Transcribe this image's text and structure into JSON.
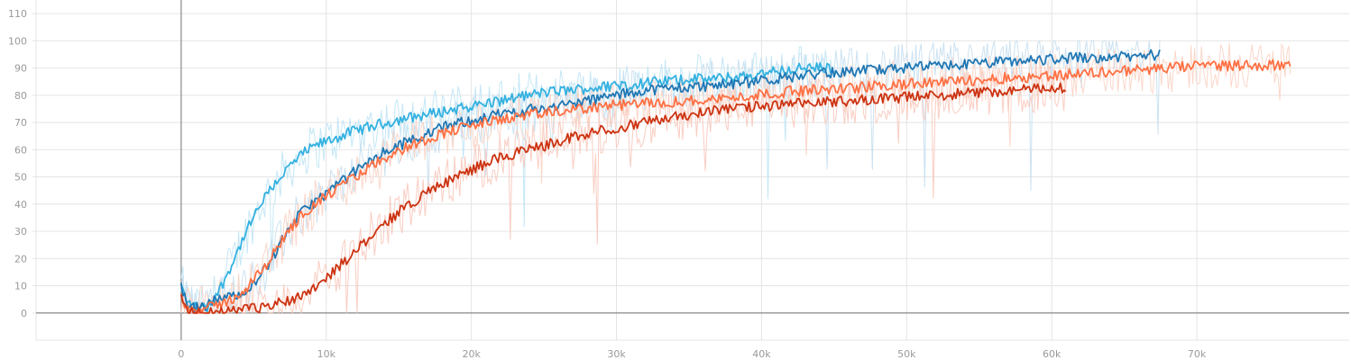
{
  "chart_data": {
    "type": "line",
    "title": "",
    "xlabel": "",
    "ylabel": "",
    "xlim": [
      -10000,
      80500
    ],
    "ylim": [
      -10,
      115
    ],
    "grid": true,
    "legend": "none",
    "x_ticks": [
      {
        "value": 0,
        "label": "0"
      },
      {
        "value": 10000,
        "label": "10k"
      },
      {
        "value": 20000,
        "label": "20k"
      },
      {
        "value": 30000,
        "label": "30k"
      },
      {
        "value": 40000,
        "label": "40k"
      },
      {
        "value": 50000,
        "label": "50k"
      },
      {
        "value": 60000,
        "label": "60k"
      },
      {
        "value": 70000,
        "label": "70k"
      }
    ],
    "y_ticks": [
      {
        "value": 0,
        "label": "0"
      },
      {
        "value": 10,
        "label": "10"
      },
      {
        "value": 20,
        "label": "20"
      },
      {
        "value": 30,
        "label": "30"
      },
      {
        "value": 40,
        "label": "40"
      },
      {
        "value": 50,
        "label": "50"
      },
      {
        "value": 60,
        "label": "60"
      },
      {
        "value": 70,
        "label": "70"
      },
      {
        "value": 80,
        "label": "80"
      },
      {
        "value": 90,
        "label": "90"
      },
      {
        "value": 100,
        "label": "100"
      },
      {
        "value": 110,
        "label": "110"
      }
    ],
    "series": [
      {
        "color": "#33b1e0",
        "raw_color": "#bfe4f5",
        "x": [
          0,
          400,
          1000,
          1800,
          2600,
          3500,
          4500,
          5500,
          6500,
          7500,
          8500,
          9500,
          10500,
          12000,
          13500,
          15000,
          17000,
          19000,
          21000,
          23000,
          25000,
          27000,
          29000,
          31000,
          33000,
          35000,
          37000,
          39000,
          41000,
          43000,
          45000
        ],
        "y": [
          10,
          4,
          2,
          2,
          8,
          18,
          30,
          40,
          48,
          54,
          59,
          62,
          64,
          67,
          69,
          71,
          73,
          75,
          77,
          79,
          81,
          82,
          83,
          84,
          85,
          86,
          86,
          87,
          89,
          90,
          90
        ]
      },
      {
        "color": "#1f77b4",
        "raw_color": "#c6dff0",
        "x": [
          0,
          300,
          800,
          1500,
          2500,
          3500,
          4500,
          5500,
          6500,
          7500,
          8500,
          10000,
          12000,
          14000,
          16000,
          18000,
          20000,
          23000,
          26000,
          29000,
          32000,
          35000,
          38000,
          41000,
          44000,
          47000,
          50000,
          53000,
          56000,
          59000,
          62000,
          65000,
          67500
        ],
        "y": [
          11,
          4,
          2,
          2,
          5,
          6,
          9,
          14,
          22,
          32,
          38,
          44,
          52,
          59,
          64,
          68,
          71,
          74,
          76,
          79,
          82,
          83,
          84,
          86,
          88,
          89,
          90,
          91,
          92,
          93,
          94,
          94,
          95
        ]
      },
      {
        "color": "#ff7043",
        "raw_color": "#fbd3c4",
        "x": [
          0,
          300,
          800,
          1500,
          2500,
          3500,
          4500,
          5500,
          6500,
          7500,
          8500,
          10000,
          12000,
          14000,
          16000,
          18000,
          20000,
          23000,
          26000,
          29000,
          32000,
          35000,
          38000,
          41000,
          44000,
          47000,
          50000,
          53000,
          56000,
          59000,
          62000,
          65000,
          68000,
          71000,
          74000,
          76500
        ],
        "y": [
          8,
          3,
          1,
          1,
          3,
          5,
          9,
          15,
          23,
          31,
          37,
          43,
          50,
          57,
          62,
          66,
          69,
          72,
          74,
          76,
          77,
          78,
          79,
          81,
          82,
          83,
          84,
          85,
          86,
          87,
          88,
          89,
          90,
          91,
          91,
          91
        ]
      },
      {
        "color": "#cc3311",
        "raw_color": "#f8c8bb",
        "x": [
          0,
          300,
          800,
          1500,
          2500,
          4000,
          5500,
          7000,
          8500,
          10000,
          11500,
          13000,
          14500,
          16000,
          17500,
          19000,
          20500,
          22000,
          24000,
          26000,
          28000,
          30000,
          32000,
          34000,
          36000,
          38000,
          40000,
          43000,
          46000,
          49000,
          52000,
          55000,
          58000,
          61000
        ],
        "y": [
          5,
          1,
          0,
          0,
          0,
          1,
          2,
          4,
          7,
          13,
          20,
          28,
          35,
          41,
          46,
          50,
          54,
          57,
          60,
          63,
          66,
          68,
          70,
          72,
          74,
          75,
          76,
          77,
          78,
          79,
          80,
          81,
          82,
          83
        ]
      }
    ]
  }
}
